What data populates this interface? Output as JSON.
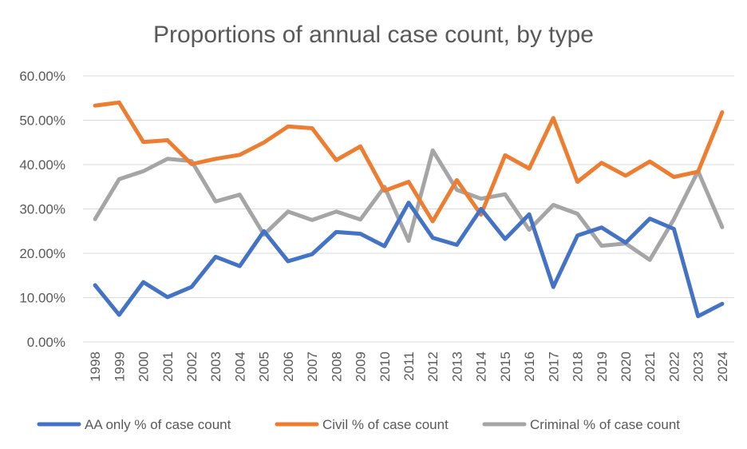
{
  "chart_data": {
    "type": "line",
    "title": "Proportions of annual case count, by type",
    "xlabel": "",
    "ylabel": "",
    "ylim": [
      0,
      60
    ],
    "yticks": [
      "0.00%",
      "10.00%",
      "20.00%",
      "30.00%",
      "40.00%",
      "50.00%",
      "60.00%"
    ],
    "grid": true,
    "legend_position": "bottom",
    "categories": [
      "1998",
      "1999",
      "2000",
      "2001",
      "2002",
      "2003",
      "2004",
      "2005",
      "2006",
      "2007",
      "2008",
      "2009",
      "2010",
      "2011",
      "2012",
      "2013",
      "2014",
      "2015",
      "2016",
      "2017",
      "2018",
      "2019",
      "2020",
      "2021",
      "2022",
      "2023",
      "2024"
    ],
    "series": [
      {
        "name": "AA only % of case count",
        "color": "#4472c4",
        "values": [
          12.8,
          6.1,
          13.5,
          10.1,
          12.4,
          19.2,
          17.1,
          25.0,
          18.2,
          19.8,
          24.8,
          24.4,
          21.6,
          31.4,
          23.5,
          21.9,
          30.0,
          23.2,
          28.8,
          12.4,
          24.0,
          25.8,
          22.4,
          27.8,
          25.5,
          5.8,
          8.6
        ]
      },
      {
        "name": "Civil % of case count",
        "color": "#ed7d31",
        "values": [
          53.3,
          54.0,
          45.1,
          45.5,
          40.1,
          41.3,
          42.2,
          45.0,
          48.6,
          48.2,
          41.0,
          44.1,
          34.1,
          36.1,
          27.2,
          36.5,
          28.7,
          42.1,
          39.1,
          50.5,
          36.1,
          40.4,
          37.5,
          40.7,
          37.2,
          38.4,
          51.8
        ]
      },
      {
        "name": "Criminal % of case count",
        "color": "#a5a5a5",
        "values": [
          27.7,
          36.7,
          38.5,
          41.3,
          40.8,
          31.7,
          33.2,
          24.2,
          29.4,
          27.5,
          29.4,
          27.6,
          35.0,
          22.8,
          43.2,
          34.3,
          32.3,
          33.3,
          25.3,
          30.9,
          28.9,
          21.7,
          22.2,
          18.5,
          27.7,
          38.5,
          25.9
        ]
      }
    ]
  }
}
